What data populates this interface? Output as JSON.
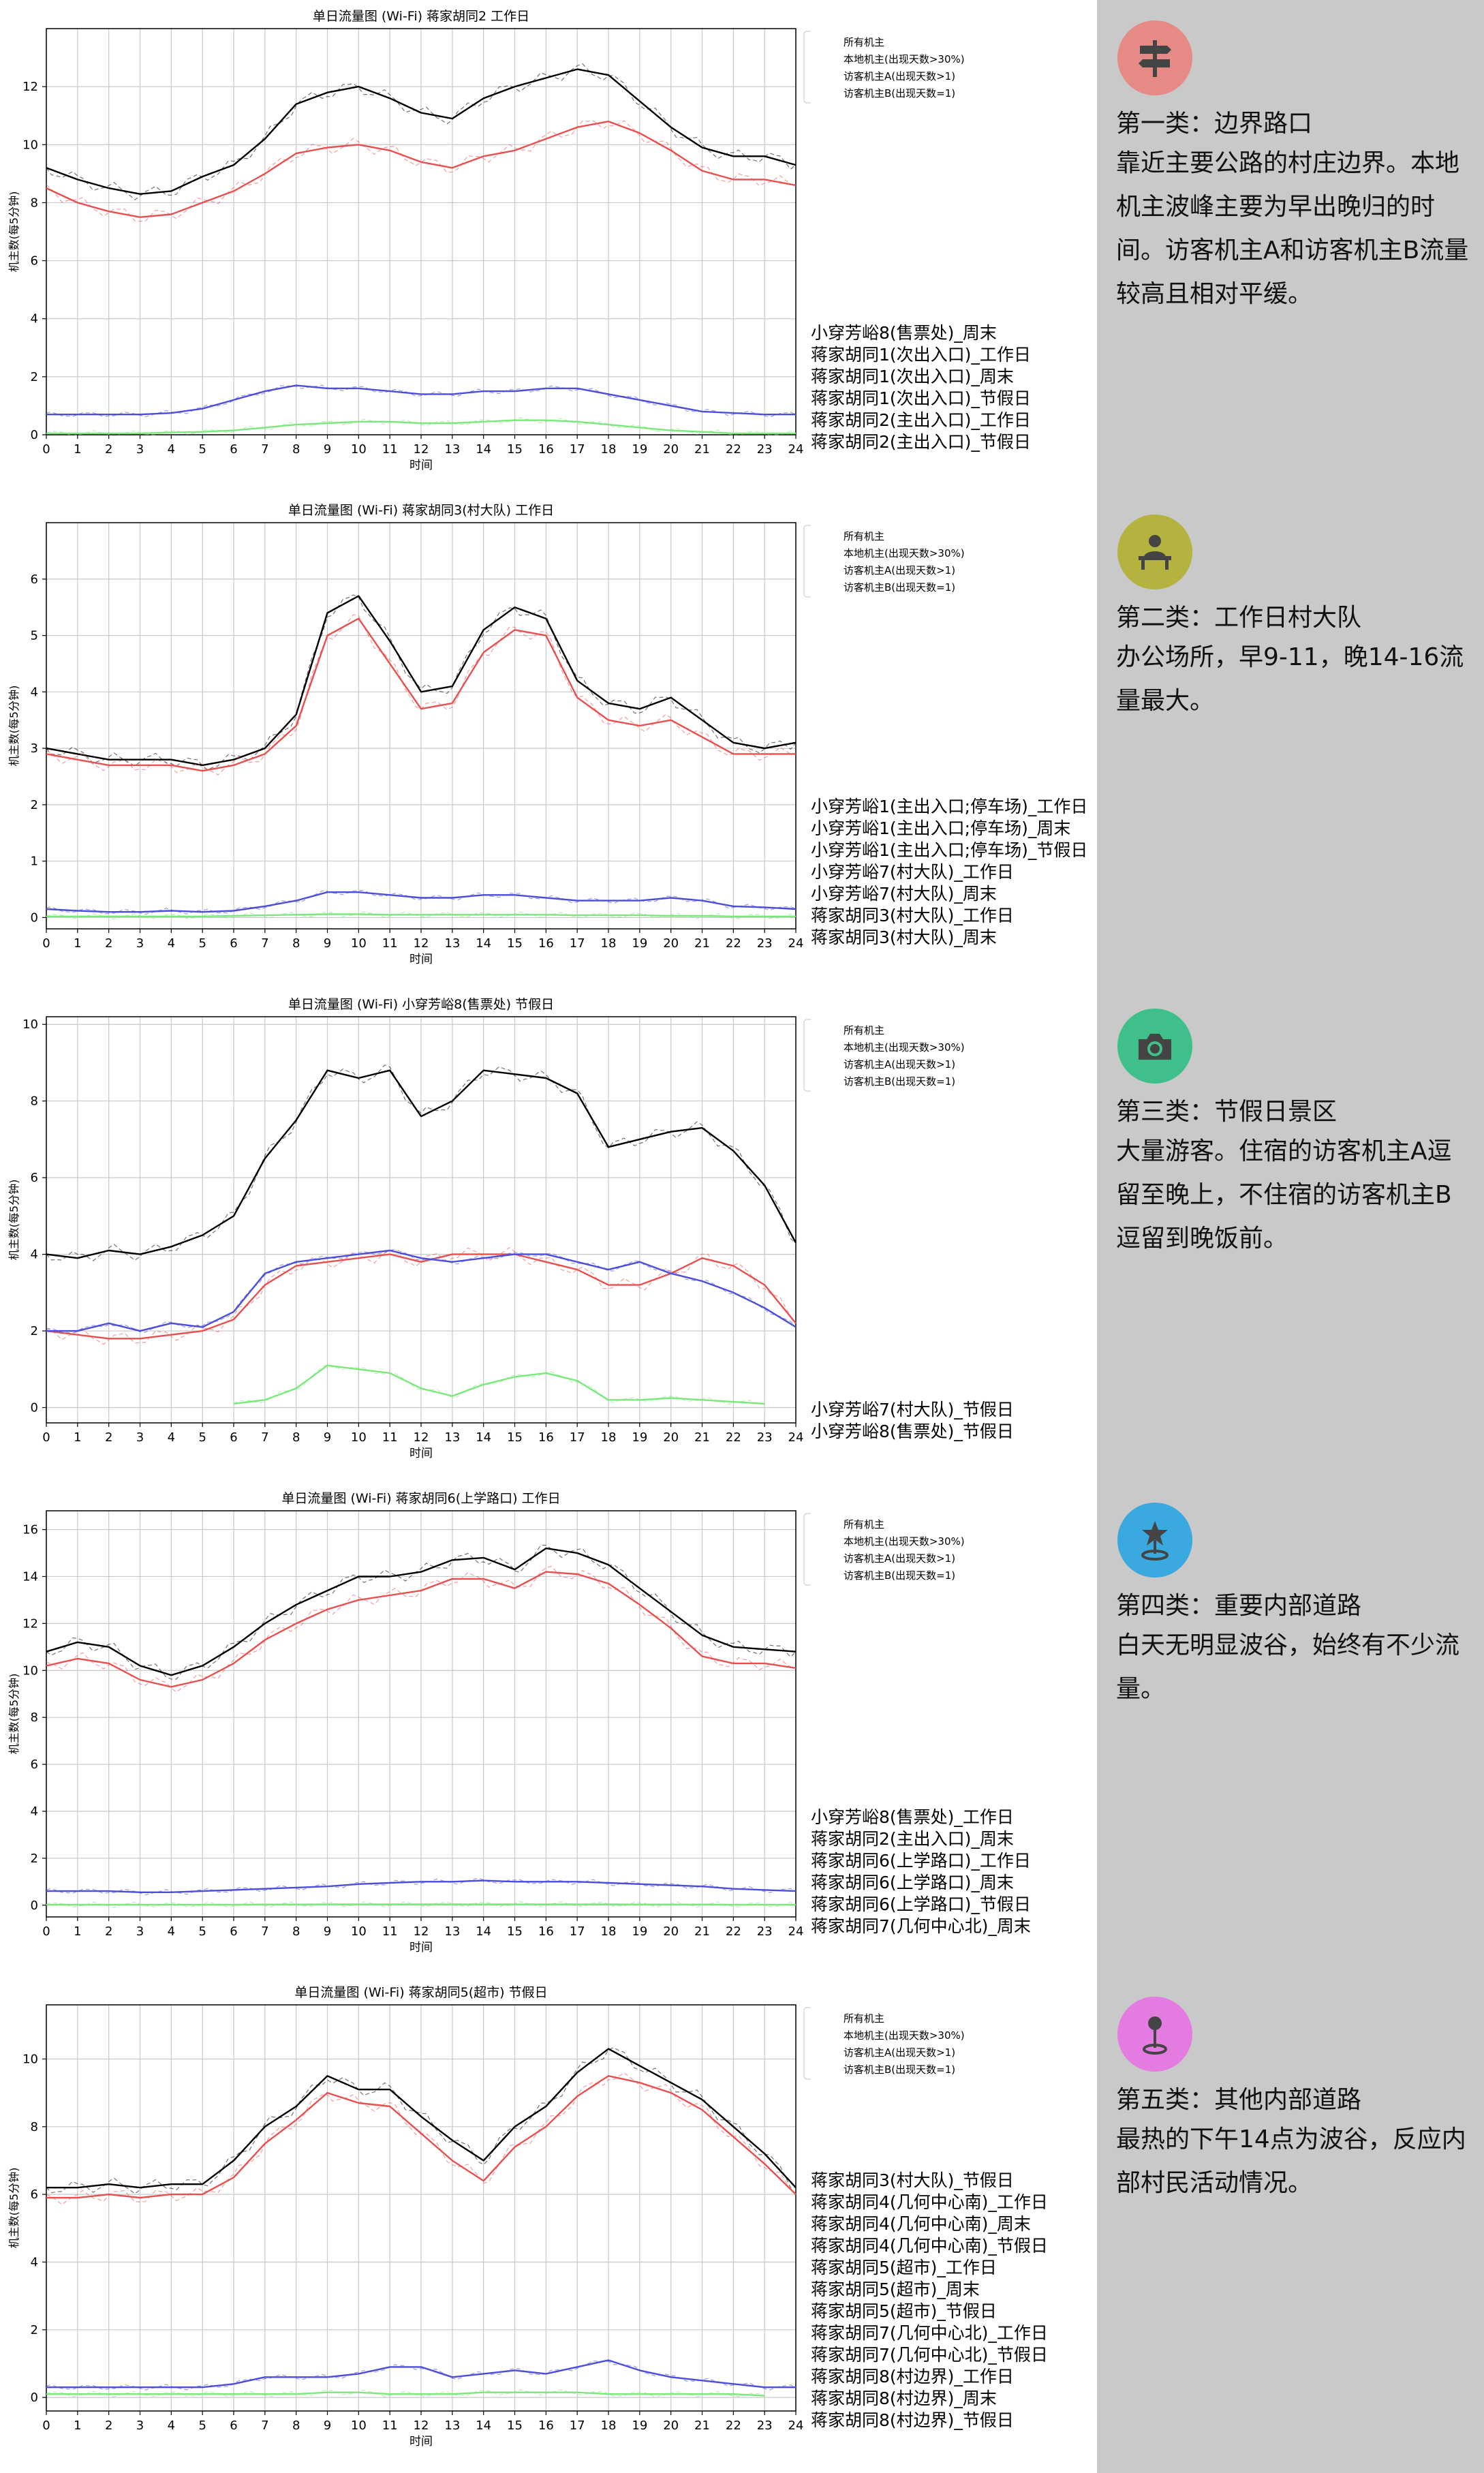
{
  "legend_labels": [
    "所有机主",
    "本地机主(出现天数>30%)",
    "访客机主A(出现天数>1)",
    "访客机主B(出现天数=1)"
  ],
  "xlabel": "时间",
  "ylabel": "机主数(每5分钟)",
  "series_colors": {
    "all": "#000000",
    "local": "#e8504f",
    "visitorA": "#4d4ddb",
    "visitorB": "#7ce87c"
  },
  "chart_data": [
    {
      "type": "line",
      "title": "单日流量图 (Wi-Fi) 蒋家胡同2 工作日",
      "xlabel": "时间",
      "ylabel": "机主数(每5分钟)",
      "xlim": [
        0,
        24
      ],
      "ylim": [
        0,
        14
      ],
      "xticks": [
        0,
        1,
        2,
        3,
        4,
        5,
        6,
        7,
        8,
        9,
        10,
        11,
        12,
        13,
        14,
        15,
        16,
        17,
        18,
        19,
        20,
        21,
        22,
        23,
        24
      ],
      "yticks": [
        0,
        2,
        4,
        6,
        8,
        10,
        12
      ],
      "grid": true,
      "legend": "top-right",
      "x": [
        0,
        1,
        2,
        3,
        4,
        5,
        6,
        7,
        8,
        9,
        10,
        11,
        12,
        13,
        14,
        15,
        16,
        17,
        18,
        19,
        20,
        21,
        22,
        23,
        24
      ],
      "series": [
        {
          "name": "所有机主",
          "values": [
            9.2,
            8.8,
            8.5,
            8.3,
            8.4,
            8.9,
            9.3,
            10.2,
            11.4,
            11.8,
            12.0,
            11.6,
            11.1,
            10.9,
            11.6,
            12.0,
            12.3,
            12.6,
            12.4,
            11.5,
            10.6,
            9.9,
            9.6,
            9.6,
            9.3
          ]
        },
        {
          "name": "本地机主(出现天数>30%)",
          "values": [
            8.5,
            8.0,
            7.7,
            7.5,
            7.6,
            8.0,
            8.4,
            9.0,
            9.7,
            9.9,
            10.0,
            9.8,
            9.4,
            9.2,
            9.6,
            9.8,
            10.2,
            10.6,
            10.8,
            10.4,
            9.8,
            9.1,
            8.8,
            8.8,
            8.6
          ]
        },
        {
          "name": "访客机主A(出现天数>1)",
          "values": [
            0.7,
            0.7,
            0.7,
            0.7,
            0.75,
            0.9,
            1.2,
            1.5,
            1.7,
            1.6,
            1.6,
            1.5,
            1.4,
            1.4,
            1.5,
            1.5,
            1.6,
            1.6,
            1.4,
            1.2,
            1.0,
            0.8,
            0.75,
            0.7,
            0.7
          ]
        },
        {
          "name": "访客机主B(出现天数=1)",
          "values": [
            0.05,
            0.05,
            0.05,
            0.05,
            0.08,
            0.1,
            0.15,
            0.25,
            0.35,
            0.4,
            0.45,
            0.45,
            0.4,
            0.4,
            0.45,
            0.5,
            0.5,
            0.45,
            0.35,
            0.25,
            0.15,
            0.1,
            0.05,
            0.05,
            0.05
          ]
        }
      ]
    },
    {
      "type": "line",
      "title": "单日流量图 (Wi-Fi) 蒋家胡同3(村大队) 工作日",
      "xlabel": "时间",
      "ylabel": "机主数(每5分钟)",
      "xlim": [
        0,
        24
      ],
      "ylim": [
        -0.2,
        7
      ],
      "xticks": [
        0,
        1,
        2,
        3,
        4,
        5,
        6,
        7,
        8,
        9,
        10,
        11,
        12,
        13,
        14,
        15,
        16,
        17,
        18,
        19,
        20,
        21,
        22,
        23,
        24
      ],
      "yticks": [
        0,
        1,
        2,
        3,
        4,
        5,
        6
      ],
      "grid": true,
      "legend": "top-right",
      "x": [
        0,
        1,
        2,
        3,
        4,
        5,
        6,
        7,
        8,
        9,
        10,
        11,
        12,
        13,
        14,
        15,
        16,
        17,
        18,
        19,
        20,
        21,
        22,
        23,
        24
      ],
      "series": [
        {
          "name": "所有机主",
          "values": [
            3.0,
            2.9,
            2.8,
            2.8,
            2.8,
            2.7,
            2.8,
            3.0,
            3.6,
            5.4,
            5.7,
            4.9,
            4.0,
            4.1,
            5.1,
            5.5,
            5.3,
            4.2,
            3.8,
            3.7,
            3.9,
            3.5,
            3.1,
            3.0,
            3.1
          ]
        },
        {
          "name": "本地机主(出现天数>30%)",
          "values": [
            2.9,
            2.8,
            2.7,
            2.7,
            2.7,
            2.6,
            2.7,
            2.9,
            3.4,
            5.0,
            5.3,
            4.5,
            3.7,
            3.8,
            4.7,
            5.1,
            5.0,
            3.9,
            3.5,
            3.4,
            3.5,
            3.2,
            2.9,
            2.9,
            2.9
          ]
        },
        {
          "name": "访客机主A(出现天数>1)",
          "values": [
            0.15,
            0.12,
            0.1,
            0.1,
            0.12,
            0.1,
            0.12,
            0.2,
            0.3,
            0.45,
            0.45,
            0.4,
            0.35,
            0.35,
            0.4,
            0.4,
            0.35,
            0.3,
            0.3,
            0.3,
            0.35,
            0.3,
            0.2,
            0.18,
            0.15
          ]
        },
        {
          "name": "访客机主B(出现天数=1)",
          "values": [
            0.02,
            0.02,
            0.02,
            0.02,
            0.02,
            0.02,
            0.03,
            0.04,
            0.05,
            0.06,
            0.06,
            0.05,
            0.05,
            0.05,
            0.05,
            0.05,
            0.05,
            0.04,
            0.04,
            0.04,
            0.03,
            0.03,
            0.02,
            0.02,
            0.02
          ]
        }
      ]
    },
    {
      "type": "line",
      "title": "单日流量图 (Wi-Fi) 小穿芳峪8(售票处) 节假日",
      "xlabel": "时间",
      "ylabel": "机主数(每5分钟)",
      "xlim": [
        0,
        24
      ],
      "ylim": [
        -0.4,
        10.2
      ],
      "xticks": [
        0,
        1,
        2,
        3,
        4,
        5,
        6,
        7,
        8,
        9,
        10,
        11,
        12,
        13,
        14,
        15,
        16,
        17,
        18,
        19,
        20,
        21,
        22,
        23,
        24
      ],
      "yticks": [
        0,
        2,
        4,
        6,
        8,
        10
      ],
      "grid": true,
      "legend": "top-right",
      "x": [
        0,
        1,
        2,
        3,
        4,
        5,
        6,
        7,
        8,
        9,
        10,
        11,
        12,
        13,
        14,
        15,
        16,
        17,
        18,
        19,
        20,
        21,
        22,
        23,
        24
      ],
      "series": [
        {
          "name": "所有机主",
          "values": [
            4.0,
            3.9,
            4.1,
            4.0,
            4.2,
            4.5,
            5.0,
            6.5,
            7.5,
            8.8,
            8.6,
            8.8,
            7.6,
            8.0,
            8.8,
            8.7,
            8.6,
            8.2,
            6.8,
            7.0,
            7.2,
            7.3,
            6.7,
            5.8,
            4.3
          ]
        },
        {
          "name": "本地机主(出现天数>30%)",
          "values": [
            2.0,
            1.9,
            1.8,
            1.8,
            1.9,
            2.0,
            2.3,
            3.2,
            3.7,
            3.8,
            3.9,
            4.0,
            3.8,
            4.0,
            4.0,
            4.0,
            3.8,
            3.6,
            3.2,
            3.2,
            3.5,
            3.9,
            3.7,
            3.2,
            2.2
          ]
        },
        {
          "name": "访客机主A(出现天数>1)",
          "values": [
            2.0,
            2.0,
            2.2,
            2.0,
            2.2,
            2.1,
            2.5,
            3.5,
            3.8,
            3.9,
            4.0,
            4.1,
            3.9,
            3.8,
            3.9,
            4.0,
            4.0,
            3.8,
            3.6,
            3.8,
            3.5,
            3.3,
            3.0,
            2.6,
            2.1
          ]
        },
        {
          "name": "访客机主B(出现天数=1)",
          "values": [
            null,
            null,
            null,
            null,
            null,
            null,
            0.1,
            0.2,
            0.5,
            1.1,
            1.0,
            0.9,
            0.5,
            0.3,
            0.6,
            0.8,
            0.9,
            0.7,
            0.2,
            0.2,
            0.25,
            0.2,
            0.15,
            0.1,
            null
          ]
        }
      ]
    },
    {
      "type": "line",
      "title": "单日流量图 (Wi-Fi) 蒋家胡同6(上学路口) 工作日",
      "xlabel": "时间",
      "ylabel": "机主数(每5分钟)",
      "xlim": [
        0,
        24
      ],
      "ylim": [
        -0.5,
        16.8
      ],
      "xticks": [
        0,
        1,
        2,
        3,
        4,
        5,
        6,
        7,
        8,
        9,
        10,
        11,
        12,
        13,
        14,
        15,
        16,
        17,
        18,
        19,
        20,
        21,
        22,
        23,
        24
      ],
      "yticks": [
        0,
        2,
        4,
        6,
        8,
        10,
        12,
        14,
        16
      ],
      "grid": true,
      "legend": "top-right",
      "x": [
        0,
        1,
        2,
        3,
        4,
        5,
        6,
        7,
        8,
        9,
        10,
        11,
        12,
        13,
        14,
        15,
        16,
        17,
        18,
        19,
        20,
        21,
        22,
        23,
        24
      ],
      "series": [
        {
          "name": "所有机主",
          "values": [
            10.8,
            11.2,
            11.0,
            10.2,
            9.8,
            10.2,
            11.0,
            12.0,
            12.8,
            13.4,
            14.0,
            14.0,
            14.2,
            14.7,
            14.8,
            14.3,
            15.2,
            15.0,
            14.5,
            13.5,
            12.5,
            11.5,
            11.0,
            10.9,
            10.8
          ]
        },
        {
          "name": "本地机主(出现天数>30%)",
          "values": [
            10.2,
            10.5,
            10.3,
            9.6,
            9.3,
            9.6,
            10.3,
            11.3,
            12.0,
            12.6,
            13.0,
            13.2,
            13.4,
            13.9,
            13.9,
            13.5,
            14.2,
            14.1,
            13.7,
            12.8,
            11.8,
            10.6,
            10.3,
            10.3,
            10.1
          ]
        },
        {
          "name": "访客机主A(出现天数>1)",
          "values": [
            0.6,
            0.6,
            0.6,
            0.55,
            0.55,
            0.6,
            0.65,
            0.7,
            0.75,
            0.8,
            0.9,
            0.95,
            1.0,
            1.0,
            1.05,
            1.0,
            1.0,
            1.0,
            0.95,
            0.9,
            0.85,
            0.8,
            0.7,
            0.65,
            0.6
          ]
        },
        {
          "name": "访客机主B(出现天数=1)",
          "values": [
            0.02,
            0.02,
            0.02,
            0.02,
            0.02,
            0.02,
            0.02,
            0.03,
            0.03,
            0.04,
            0.04,
            0.04,
            0.04,
            0.04,
            0.04,
            0.04,
            0.04,
            0.04,
            0.04,
            0.03,
            0.03,
            0.03,
            0.02,
            0.02,
            0.02
          ]
        }
      ]
    },
    {
      "type": "line",
      "title": "单日流量图 (Wi-Fi) 蒋家胡同5(超市) 节假日",
      "xlabel": "时间",
      "ylabel": "机主数(每5分钟)",
      "xlim": [
        0,
        24
      ],
      "ylim": [
        -0.4,
        11.6
      ],
      "xticks": [
        0,
        1,
        2,
        3,
        4,
        5,
        6,
        7,
        8,
        9,
        10,
        11,
        12,
        13,
        14,
        15,
        16,
        17,
        18,
        19,
        20,
        21,
        22,
        23,
        24
      ],
      "yticks": [
        0,
        2,
        4,
        6,
        8,
        10
      ],
      "grid": true,
      "legend": "top-right",
      "x": [
        0,
        1,
        2,
        3,
        4,
        5,
        6,
        7,
        8,
        9,
        10,
        11,
        12,
        13,
        14,
        15,
        16,
        17,
        18,
        19,
        20,
        21,
        22,
        23,
        24
      ],
      "series": [
        {
          "name": "所有机主",
          "values": [
            6.2,
            6.2,
            6.3,
            6.2,
            6.3,
            6.3,
            7.0,
            8.0,
            8.6,
            9.5,
            9.1,
            9.1,
            8.3,
            7.6,
            7.0,
            8.0,
            8.6,
            9.6,
            10.3,
            9.8,
            9.3,
            8.8,
            8.0,
            7.2,
            6.2
          ]
        },
        {
          "name": "本地机主(出现天数>30%)",
          "values": [
            5.9,
            5.9,
            6.0,
            5.9,
            6.0,
            6.0,
            6.5,
            7.5,
            8.2,
            9.0,
            8.7,
            8.6,
            7.8,
            7.0,
            6.4,
            7.4,
            8.0,
            8.9,
            9.5,
            9.3,
            9.0,
            8.5,
            7.7,
            6.9,
            6.0
          ]
        },
        {
          "name": "访客机主A(出现天数>1)",
          "values": [
            0.3,
            0.3,
            0.3,
            0.3,
            0.3,
            0.3,
            0.4,
            0.6,
            0.6,
            0.6,
            0.7,
            0.9,
            0.9,
            0.6,
            0.7,
            0.8,
            0.7,
            0.9,
            1.1,
            0.8,
            0.6,
            0.5,
            0.4,
            0.3,
            0.3
          ]
        },
        {
          "name": "访客机主B(出现天数=1)",
          "values": [
            0.1,
            0.1,
            0.1,
            0.1,
            0.1,
            0.1,
            0.1,
            0.1,
            0.1,
            0.15,
            0.15,
            0.1,
            0.1,
            0.1,
            0.15,
            0.15,
            0.15,
            0.15,
            0.1,
            0.1,
            0.1,
            0.1,
            0.1,
            0.05,
            null
          ]
        }
      ]
    }
  ],
  "station_lists": [
    [
      "小穿芳峪8(售票处)_周末",
      "蒋家胡同1(次出入口)_工作日",
      "蒋家胡同1(次出入口)_周末",
      "蒋家胡同1(次出入口)_节假日",
      "蒋家胡同2(主出入口)_工作日",
      "蒋家胡同2(主出入口)_节假日"
    ],
    [
      "小穿芳峪1(主出入口;停车场)_工作日",
      "小穿芳峪1(主出入口;停车场)_周末",
      "小穿芳峪1(主出入口;停车场)_节假日",
      "小穿芳峪7(村大队)_工作日",
      "小穿芳峪7(村大队)_周末",
      "蒋家胡同3(村大队)_工作日",
      "蒋家胡同3(村大队)_周末"
    ],
    [
      "小穿芳峪7(村大队)_节假日",
      "小穿芳峪8(售票处)_节假日"
    ],
    [
      "小穿芳峪8(售票处)_工作日",
      "蒋家胡同2(主出入口)_周末",
      "蒋家胡同6(上学路口)_工作日",
      "蒋家胡同6(上学路口)_周末",
      "蒋家胡同6(上学路口)_节假日",
      "蒋家胡同7(几何中心北)_周末"
    ],
    [
      "蒋家胡同3(村大队)_节假日",
      "蒋家胡同4(几何中心南)_工作日",
      "蒋家胡同4(几何中心南)_周末",
      "蒋家胡同4(几何中心南)_节假日",
      "蒋家胡同5(超市)_工作日",
      "蒋家胡同5(超市)_周末",
      "蒋家胡同5(超市)_节假日",
      "蒋家胡同7(几何中心北)_工作日",
      "蒋家胡同7(几何中心北)_节假日",
      "蒋家胡同8(村边界)_工作日",
      "蒋家胡同8(村边界)_周末",
      "蒋家胡同8(村边界)_节假日"
    ]
  ],
  "categories": [
    {
      "icon": "signpost-icon",
      "color": "#e58a85",
      "title": "第一类：边界路口",
      "desc": "靠近主要公路的村庄边界。本地机主波峰主要为早出晚归的时间。访客机主A和访客机主B流量较高且相对平缓。"
    },
    {
      "icon": "desk-icon",
      "color": "#b4b33f",
      "title": "第二类：工作日村大队",
      "desc": "办公场所，早9-11，晚14-16流量最大。"
    },
    {
      "icon": "camera-icon",
      "color": "#3fbf8a",
      "title": "第三类：节假日景区",
      "desc": "大量游客。住宿的访客机主A逗留至晚上，不住宿的访客机主B逗留到晚饭前。"
    },
    {
      "icon": "star-pin-icon",
      "color": "#3aa9df",
      "title": "第四类：重要内部道路",
      "desc": "白天无明显波谷，始终有不少流量。"
    },
    {
      "icon": "map-pin-icon",
      "color": "#e47be0",
      "title": "第五类：其他内部道路",
      "desc": "最热的下午14点为波谷，反应内部村民活动情况。"
    }
  ]
}
